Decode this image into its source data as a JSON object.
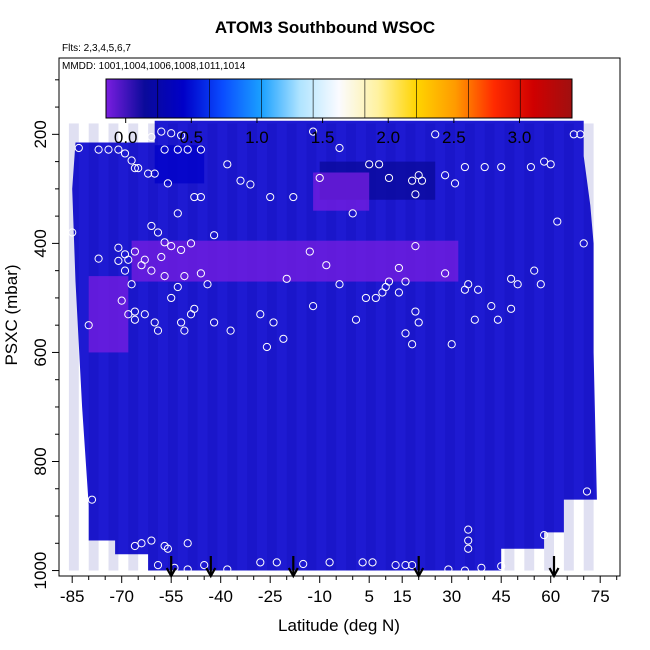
{
  "title": "ATOM3 Southbound WSOC",
  "flights_note": "Flts: 2,3,4,5,6,7",
  "dates_note": "MMDD: 1001,1004,1006,1008,1011,1014",
  "colors": {
    "colorbar_stops": [
      "#7a1ee0",
      "#0a0a9a",
      "#0000c8",
      "#0a4cff",
      "#1aa0ff",
      "#b0e4ff",
      "#fbfbff",
      "#fff2a0",
      "#ffd400",
      "#ff9a00",
      "#ff2a00",
      "#d00000",
      "#a01010"
    ],
    "field_base": "#1e1ad2",
    "marker": "#ffffff"
  },
  "chart_data": {
    "type": "heatmap",
    "title": "ATOM3 Southbound WSOC",
    "xlabel": "Latitude (deg N)",
    "ylabel": "PSXC (mbar)",
    "x_ticks": [
      -85,
      -70,
      -55,
      -40,
      -25,
      -10,
      5,
      15,
      30,
      45,
      60,
      75
    ],
    "x_tick_labels": [
      "-85",
      "-70",
      "-55",
      "-40",
      "-25",
      "-10",
      "5",
      "15",
      "30",
      "45",
      "60",
      "75"
    ],
    "xlim": [
      -89,
      81
    ],
    "y_ticks": [
      200,
      400,
      600,
      800,
      1000
    ],
    "y_tick_labels": [
      "200",
      "400",
      "600",
      "800",
      "1000"
    ],
    "ylim": [
      1010,
      60
    ],
    "y_reversed": true,
    "colorbar": {
      "range": [
        -0.15,
        3.4
      ],
      "ticks": [
        0.0,
        0.5,
        1.0,
        1.5,
        2.0,
        2.5,
        3.0
      ],
      "tick_labels": [
        "0.0",
        "0.5",
        "1.0",
        "1.5",
        "2.0",
        "2.5",
        "3.0"
      ]
    },
    "field_regions": [
      {
        "lat": [
          -67,
          32
        ],
        "p": [
          395,
          470
        ],
        "value": -0.05
      },
      {
        "lat": [
          -60,
          -45
        ],
        "p": [
          220,
          290
        ],
        "value": 0.45
      },
      {
        "lat": [
          -80,
          -68
        ],
        "p": [
          460,
          600
        ],
        "value": -0.05
      },
      {
        "lat": [
          -10,
          25
        ],
        "p": [
          250,
          320
        ],
        "value": 0.05
      },
      {
        "lat": [
          -12,
          5
        ],
        "p": [
          270,
          340
        ],
        "value": -0.05
      }
    ],
    "sounding_markers_lat": [
      -55,
      -43,
      -18,
      20,
      61
    ],
    "observations": [
      {
        "lat": -85,
        "p": 380
      },
      {
        "lat": -83,
        "p": 225
      },
      {
        "lat": -77,
        "p": 228
      },
      {
        "lat": -74,
        "p": 228
      },
      {
        "lat": -71,
        "p": 228
      },
      {
        "lat": -69,
        "p": 235
      },
      {
        "lat": -67,
        "p": 248
      },
      {
        "lat": -66,
        "p": 262
      },
      {
        "lat": -65,
        "p": 262
      },
      {
        "lat": -62,
        "p": 272
      },
      {
        "lat": -60,
        "p": 272
      },
      {
        "lat": -61,
        "p": 205
      },
      {
        "lat": -58,
        "p": 195
      },
      {
        "lat": -55,
        "p": 198
      },
      {
        "lat": -52,
        "p": 202
      },
      {
        "lat": -57,
        "p": 228
      },
      {
        "lat": -53,
        "p": 228
      },
      {
        "lat": -50,
        "p": 228
      },
      {
        "lat": -46,
        "p": 228
      },
      {
        "lat": -56,
        "p": 290
      },
      {
        "lat": -53,
        "p": 345
      },
      {
        "lat": -59,
        "p": 380
      },
      {
        "lat": -57,
        "p": 398
      },
      {
        "lat": -55,
        "p": 405
      },
      {
        "lat": -61,
        "p": 368
      },
      {
        "lat": -48,
        "p": 315
      },
      {
        "lat": -46,
        "p": 315
      },
      {
        "lat": -38,
        "p": 255
      },
      {
        "lat": -34,
        "p": 285
      },
      {
        "lat": -31,
        "p": 292
      },
      {
        "lat": -25,
        "p": 315
      },
      {
        "lat": -18,
        "p": 315
      },
      {
        "lat": -42,
        "p": 385
      },
      {
        "lat": -49,
        "p": 400
      },
      {
        "lat": -52,
        "p": 412
      },
      {
        "lat": -58,
        "p": 425
      },
      {
        "lat": -63,
        "p": 430
      },
      {
        "lat": -68,
        "p": 430
      },
      {
        "lat": -71,
        "p": 432
      },
      {
        "lat": -77,
        "p": 428
      },
      {
        "lat": -71,
        "p": 408
      },
      {
        "lat": -66,
        "p": 415
      },
      {
        "lat": -69,
        "p": 420
      },
      {
        "lat": -69,
        "p": 450
      },
      {
        "lat": -61,
        "p": 450
      },
      {
        "lat": -57,
        "p": 460
      },
      {
        "lat": -64,
        "p": 440
      },
      {
        "lat": -67,
        "p": 475
      },
      {
        "lat": -51,
        "p": 460
      },
      {
        "lat": -46,
        "p": 455
      },
      {
        "lat": -44,
        "p": 475
      },
      {
        "lat": -53,
        "p": 480
      },
      {
        "lat": -55,
        "p": 500
      },
      {
        "lat": -70,
        "p": 505
      },
      {
        "lat": -80,
        "p": 550
      },
      {
        "lat": -68,
        "p": 530
      },
      {
        "lat": -66,
        "p": 525
      },
      {
        "lat": -63,
        "p": 530
      },
      {
        "lat": -66,
        "p": 540
      },
      {
        "lat": -60,
        "p": 545
      },
      {
        "lat": -59,
        "p": 560
      },
      {
        "lat": -51,
        "p": 560
      },
      {
        "lat": -48,
        "p": 520
      },
      {
        "lat": -49,
        "p": 530
      },
      {
        "lat": -52,
        "p": 545
      },
      {
        "lat": -42,
        "p": 545
      },
      {
        "lat": -37,
        "p": 560
      },
      {
        "lat": -28,
        "p": 530
      },
      {
        "lat": -24,
        "p": 545
      },
      {
        "lat": -26,
        "p": 590
      },
      {
        "lat": -21,
        "p": 575
      },
      {
        "lat": -20,
        "p": 465
      },
      {
        "lat": -12,
        "p": 195
      },
      {
        "lat": -4,
        "p": 225
      },
      {
        "lat": -10,
        "p": 280
      },
      {
        "lat": 0,
        "p": 345
      },
      {
        "lat": -13,
        "p": 415
      },
      {
        "lat": -8,
        "p": 440
      },
      {
        "lat": -4,
        "p": 475
      },
      {
        "lat": -12,
        "p": 515
      },
      {
        "lat": 1,
        "p": 540
      },
      {
        "lat": 4,
        "p": 500
      },
      {
        "lat": 7,
        "p": 500
      },
      {
        "lat": 9,
        "p": 490
      },
      {
        "lat": 10,
        "p": 480
      },
      {
        "lat": 11,
        "p": 470
      },
      {
        "lat": 14,
        "p": 490
      },
      {
        "lat": 5,
        "p": 255
      },
      {
        "lat": 8,
        "p": 255
      },
      {
        "lat": 11,
        "p": 280
      },
      {
        "lat": 18,
        "p": 285
      },
      {
        "lat": 21,
        "p": 285
      },
      {
        "lat": 20,
        "p": 275
      },
      {
        "lat": 19,
        "p": 310
      },
      {
        "lat": 14,
        "p": 445
      },
      {
        "lat": 16,
        "p": 470
      },
      {
        "lat": 19,
        "p": 405
      },
      {
        "lat": 16,
        "p": 565
      },
      {
        "lat": 18,
        "p": 585
      },
      {
        "lat": 20,
        "p": 545
      },
      {
        "lat": 19,
        "p": 525
      },
      {
        "lat": 25,
        "p": 200
      },
      {
        "lat": 28,
        "p": 275
      },
      {
        "lat": 31,
        "p": 290
      },
      {
        "lat": 34,
        "p": 260
      },
      {
        "lat": 40,
        "p": 260
      },
      {
        "lat": 45,
        "p": 260
      },
      {
        "lat": 54,
        "p": 260
      },
      {
        "lat": 58,
        "p": 250
      },
      {
        "lat": 60,
        "p": 255
      },
      {
        "lat": 62,
        "p": 360
      },
      {
        "lat": 70,
        "p": 400
      },
      {
        "lat": 67,
        "p": 200
      },
      {
        "lat": 69,
        "p": 200
      },
      {
        "lat": 28,
        "p": 455
      },
      {
        "lat": 34,
        "p": 485
      },
      {
        "lat": 38,
        "p": 485
      },
      {
        "lat": 42,
        "p": 515
      },
      {
        "lat": 48,
        "p": 520
      },
      {
        "lat": 50,
        "p": 475
      },
      {
        "lat": 57,
        "p": 475
      },
      {
        "lat": 55,
        "p": 450
      },
      {
        "lat": 37,
        "p": 540
      },
      {
        "lat": 44,
        "p": 540
      },
      {
        "lat": 30,
        "p": 585
      },
      {
        "lat": 35,
        "p": 475
      },
      {
        "lat": 48,
        "p": 465
      },
      {
        "lat": 71,
        "p": 855
      },
      {
        "lat": -79,
        "p": 870
      },
      {
        "lat": 35,
        "p": 925
      },
      {
        "lat": 35,
        "p": 945
      },
      {
        "lat": 58,
        "p": 935
      },
      {
        "lat": 35,
        "p": 960
      },
      {
        "lat": -66,
        "p": 955
      },
      {
        "lat": -64,
        "p": 950
      },
      {
        "lat": -61,
        "p": 945
      },
      {
        "lat": -57,
        "p": 955
      },
      {
        "lat": -56,
        "p": 960
      },
      {
        "lat": -50,
        "p": 950
      },
      {
        "lat": -59,
        "p": 990
      },
      {
        "lat": -54,
        "p": 995
      },
      {
        "lat": -50,
        "p": 998
      },
      {
        "lat": -45,
        "p": 990
      },
      {
        "lat": -38,
        "p": 998
      },
      {
        "lat": -28,
        "p": 985
      },
      {
        "lat": -23,
        "p": 985
      },
      {
        "lat": -15,
        "p": 988
      },
      {
        "lat": -7,
        "p": 985
      },
      {
        "lat": 3,
        "p": 985
      },
      {
        "lat": 6,
        "p": 985
      },
      {
        "lat": 13,
        "p": 990
      },
      {
        "lat": 16,
        "p": 990
      },
      {
        "lat": 18,
        "p": 990
      },
      {
        "lat": 29,
        "p": 998
      },
      {
        "lat": 34,
        "p": 1000
      },
      {
        "lat": 39,
        "p": 995
      },
      {
        "lat": 45,
        "p": 992
      }
    ]
  }
}
